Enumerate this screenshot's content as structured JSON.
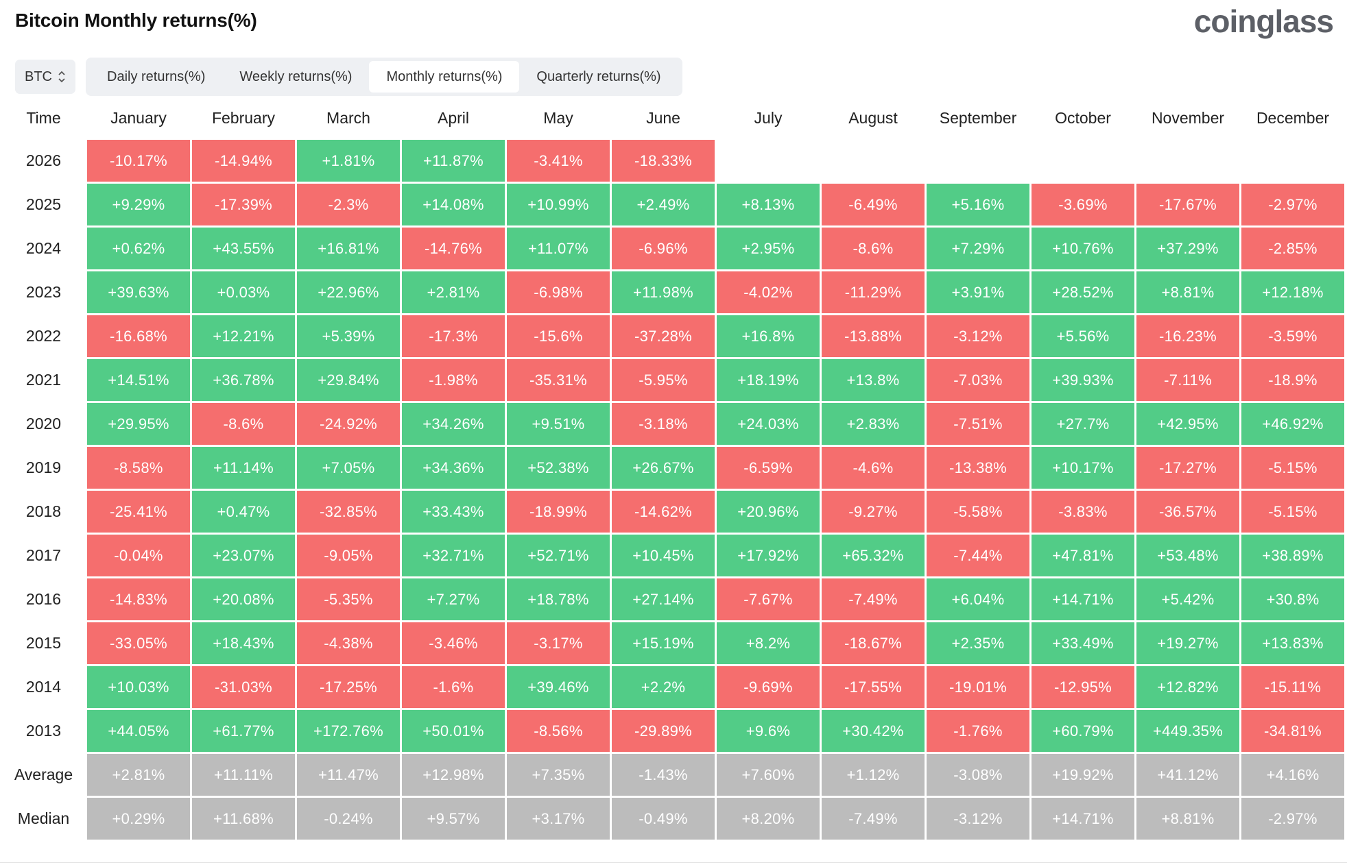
{
  "header": {
    "title": "Bitcoin Monthly returns(%)",
    "brand": "coinglass"
  },
  "toolbar": {
    "coin": "BTC",
    "tabs": [
      {
        "label": "Daily returns(%)",
        "active": false
      },
      {
        "label": "Weekly returns(%)",
        "active": false
      },
      {
        "label": "Monthly returns(%)",
        "active": true
      },
      {
        "label": "Quarterly returns(%)",
        "active": false
      }
    ]
  },
  "colors": {
    "positive": "#52cc87",
    "negative": "#f56e6e",
    "stat": "#bcbcbc"
  },
  "table": {
    "time_header": "Time",
    "months": [
      "January",
      "February",
      "March",
      "April",
      "May",
      "June",
      "July",
      "August",
      "September",
      "October",
      "November",
      "December"
    ],
    "rows": [
      {
        "year": "2026",
        "values": [
          "-10.17%",
          "-14.94%",
          "+1.81%",
          "+11.87%",
          "-3.41%",
          "-18.33%",
          "",
          "",
          "",
          "",
          "",
          ""
        ]
      },
      {
        "year": "2025",
        "values": [
          "+9.29%",
          "-17.39%",
          "-2.3%",
          "+14.08%",
          "+10.99%",
          "+2.49%",
          "+8.13%",
          "-6.49%",
          "+5.16%",
          "-3.69%",
          "-17.67%",
          "-2.97%"
        ]
      },
      {
        "year": "2024",
        "values": [
          "+0.62%",
          "+43.55%",
          "+16.81%",
          "-14.76%",
          "+11.07%",
          "-6.96%",
          "+2.95%",
          "-8.6%",
          "+7.29%",
          "+10.76%",
          "+37.29%",
          "-2.85%"
        ]
      },
      {
        "year": "2023",
        "values": [
          "+39.63%",
          "+0.03%",
          "+22.96%",
          "+2.81%",
          "-6.98%",
          "+11.98%",
          "-4.02%",
          "-11.29%",
          "+3.91%",
          "+28.52%",
          "+8.81%",
          "+12.18%"
        ]
      },
      {
        "year": "2022",
        "values": [
          "-16.68%",
          "+12.21%",
          "+5.39%",
          "-17.3%",
          "-15.6%",
          "-37.28%",
          "+16.8%",
          "-13.88%",
          "-3.12%",
          "+5.56%",
          "-16.23%",
          "-3.59%"
        ]
      },
      {
        "year": "2021",
        "values": [
          "+14.51%",
          "+36.78%",
          "+29.84%",
          "-1.98%",
          "-35.31%",
          "-5.95%",
          "+18.19%",
          "+13.8%",
          "-7.03%",
          "+39.93%",
          "-7.11%",
          "-18.9%"
        ]
      },
      {
        "year": "2020",
        "values": [
          "+29.95%",
          "-8.6%",
          "-24.92%",
          "+34.26%",
          "+9.51%",
          "-3.18%",
          "+24.03%",
          "+2.83%",
          "-7.51%",
          "+27.7%",
          "+42.95%",
          "+46.92%"
        ]
      },
      {
        "year": "2019",
        "values": [
          "-8.58%",
          "+11.14%",
          "+7.05%",
          "+34.36%",
          "+52.38%",
          "+26.67%",
          "-6.59%",
          "-4.6%",
          "-13.38%",
          "+10.17%",
          "-17.27%",
          "-5.15%"
        ]
      },
      {
        "year": "2018",
        "values": [
          "-25.41%",
          "+0.47%",
          "-32.85%",
          "+33.43%",
          "-18.99%",
          "-14.62%",
          "+20.96%",
          "-9.27%",
          "-5.58%",
          "-3.83%",
          "-36.57%",
          "-5.15%"
        ]
      },
      {
        "year": "2017",
        "values": [
          "-0.04%",
          "+23.07%",
          "-9.05%",
          "+32.71%",
          "+52.71%",
          "+10.45%",
          "+17.92%",
          "+65.32%",
          "-7.44%",
          "+47.81%",
          "+53.48%",
          "+38.89%"
        ]
      },
      {
        "year": "2016",
        "values": [
          "-14.83%",
          "+20.08%",
          "-5.35%",
          "+7.27%",
          "+18.78%",
          "+27.14%",
          "-7.67%",
          "-7.49%",
          "+6.04%",
          "+14.71%",
          "+5.42%",
          "+30.8%"
        ]
      },
      {
        "year": "2015",
        "values": [
          "-33.05%",
          "+18.43%",
          "-4.38%",
          "-3.46%",
          "-3.17%",
          "+15.19%",
          "+8.2%",
          "-18.67%",
          "+2.35%",
          "+33.49%",
          "+19.27%",
          "+13.83%"
        ]
      },
      {
        "year": "2014",
        "values": [
          "+10.03%",
          "-31.03%",
          "-17.25%",
          "-1.6%",
          "+39.46%",
          "+2.2%",
          "-9.69%",
          "-17.55%",
          "-19.01%",
          "-12.95%",
          "+12.82%",
          "-15.11%"
        ]
      },
      {
        "year": "2013",
        "values": [
          "+44.05%",
          "+61.77%",
          "+172.76%",
          "+50.01%",
          "-8.56%",
          "-29.89%",
          "+9.6%",
          "+30.42%",
          "-1.76%",
          "+60.79%",
          "+449.35%",
          "-34.81%"
        ]
      }
    ],
    "summary": [
      {
        "label": "Average",
        "values": [
          "+2.81%",
          "+11.11%",
          "+11.47%",
          "+12.98%",
          "+7.35%",
          "-1.43%",
          "+7.60%",
          "+1.12%",
          "-3.08%",
          "+19.92%",
          "+41.12%",
          "+4.16%"
        ]
      },
      {
        "label": "Median",
        "values": [
          "+0.29%",
          "+11.68%",
          "-0.24%",
          "+9.57%",
          "+3.17%",
          "-0.49%",
          "+8.20%",
          "-7.49%",
          "-3.12%",
          "+14.71%",
          "+8.81%",
          "-2.97%"
        ]
      }
    ]
  }
}
